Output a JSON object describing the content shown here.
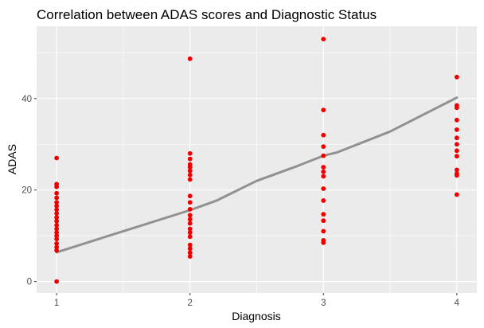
{
  "chart_data": {
    "type": "scatter",
    "title": "Correlation between ADAS scores and Diagnostic Status",
    "xlabel": "Diagnosis",
    "ylabel": "ADAS",
    "xlim": [
      0.85,
      4.15
    ],
    "ylim": [
      -2.5,
      55.8
    ],
    "x_ticks": [
      1,
      2,
      3,
      4
    ],
    "x_tick_labels": [
      "1",
      "2",
      "3",
      "4"
    ],
    "y_ticks": [
      0,
      20,
      40
    ],
    "y_tick_labels": [
      "0",
      "20",
      "40"
    ],
    "grid": true,
    "panel_background": "#ebebeb",
    "grid_color": "#ffffff",
    "point_color": "#ee0000",
    "trend_color": "#8c8c8c",
    "series": [
      {
        "points": [
          {
            "x": 1,
            "y": 0
          },
          {
            "x": 1,
            "y": 27
          },
          {
            "x": 1,
            "y": 21.3
          },
          {
            "x": 1,
            "y": 20.7
          },
          {
            "x": 1,
            "y": 19.3
          },
          {
            "x": 1,
            "y": 18.3
          },
          {
            "x": 1,
            "y": 17.3
          },
          {
            "x": 1,
            "y": 16.5
          },
          {
            "x": 1,
            "y": 15.7
          },
          {
            "x": 1,
            "y": 14.9
          },
          {
            "x": 1,
            "y": 14
          },
          {
            "x": 1,
            "y": 13.2
          },
          {
            "x": 1,
            "y": 12.3
          },
          {
            "x": 1,
            "y": 11.5
          },
          {
            "x": 1,
            "y": 10.7
          },
          {
            "x": 1,
            "y": 10
          },
          {
            "x": 1,
            "y": 9.3
          },
          {
            "x": 1,
            "y": 8.3
          },
          {
            "x": 1,
            "y": 7.5
          },
          {
            "x": 1,
            "y": 6.8
          },
          {
            "x": 2,
            "y": 48.7
          },
          {
            "x": 2,
            "y": 28
          },
          {
            "x": 2,
            "y": 26.8
          },
          {
            "x": 2,
            "y": 25.6
          },
          {
            "x": 2,
            "y": 25
          },
          {
            "x": 2,
            "y": 24.2
          },
          {
            "x": 2,
            "y": 23.3
          },
          {
            "x": 2,
            "y": 22.3
          },
          {
            "x": 2,
            "y": 18.7
          },
          {
            "x": 2,
            "y": 17.3
          },
          {
            "x": 2,
            "y": 15.8
          },
          {
            "x": 2,
            "y": 14.5
          },
          {
            "x": 2,
            "y": 13.6
          },
          {
            "x": 2,
            "y": 12.7
          },
          {
            "x": 2,
            "y": 11.5
          },
          {
            "x": 2,
            "y": 10.7
          },
          {
            "x": 2,
            "y": 9.8
          },
          {
            "x": 2,
            "y": 8
          },
          {
            "x": 2,
            "y": 7.2
          },
          {
            "x": 2,
            "y": 6.3
          },
          {
            "x": 2,
            "y": 5.5
          },
          {
            "x": 3,
            "y": 53
          },
          {
            "x": 3,
            "y": 37.5
          },
          {
            "x": 3,
            "y": 32
          },
          {
            "x": 3,
            "y": 29.5
          },
          {
            "x": 3,
            "y": 27.5
          },
          {
            "x": 3,
            "y": 25
          },
          {
            "x": 3,
            "y": 24
          },
          {
            "x": 3,
            "y": 23
          },
          {
            "x": 3,
            "y": 20.3
          },
          {
            "x": 3,
            "y": 17.7
          },
          {
            "x": 3,
            "y": 14.7
          },
          {
            "x": 3,
            "y": 13.3
          },
          {
            "x": 3,
            "y": 11
          },
          {
            "x": 3,
            "y": 9
          },
          {
            "x": 3,
            "y": 8.5
          },
          {
            "x": 4,
            "y": 44.7
          },
          {
            "x": 4,
            "y": 38.5
          },
          {
            "x": 4,
            "y": 38
          },
          {
            "x": 4,
            "y": 35.3
          },
          {
            "x": 4,
            "y": 33.2
          },
          {
            "x": 4,
            "y": 31.4
          },
          {
            "x": 4,
            "y": 30
          },
          {
            "x": 4,
            "y": 28.6
          },
          {
            "x": 4,
            "y": 27.4
          },
          {
            "x": 4,
            "y": 24.4
          },
          {
            "x": 4,
            "y": 23.6
          },
          {
            "x": 4,
            "y": 23.2
          },
          {
            "x": 4,
            "y": 19
          }
        ]
      }
    ],
    "trend_line": [
      {
        "x": 1,
        "y": 6.4
      },
      {
        "x": 1.5,
        "y": 11
      },
      {
        "x": 2,
        "y": 15.6
      },
      {
        "x": 2.2,
        "y": 17.7
      },
      {
        "x": 2.5,
        "y": 22
      },
      {
        "x": 2.8,
        "y": 25.2
      },
      {
        "x": 3,
        "y": 27.5
      },
      {
        "x": 3.1,
        "y": 28.2
      },
      {
        "x": 3.5,
        "y": 32.8
      },
      {
        "x": 4,
        "y": 40.2
      }
    ]
  }
}
